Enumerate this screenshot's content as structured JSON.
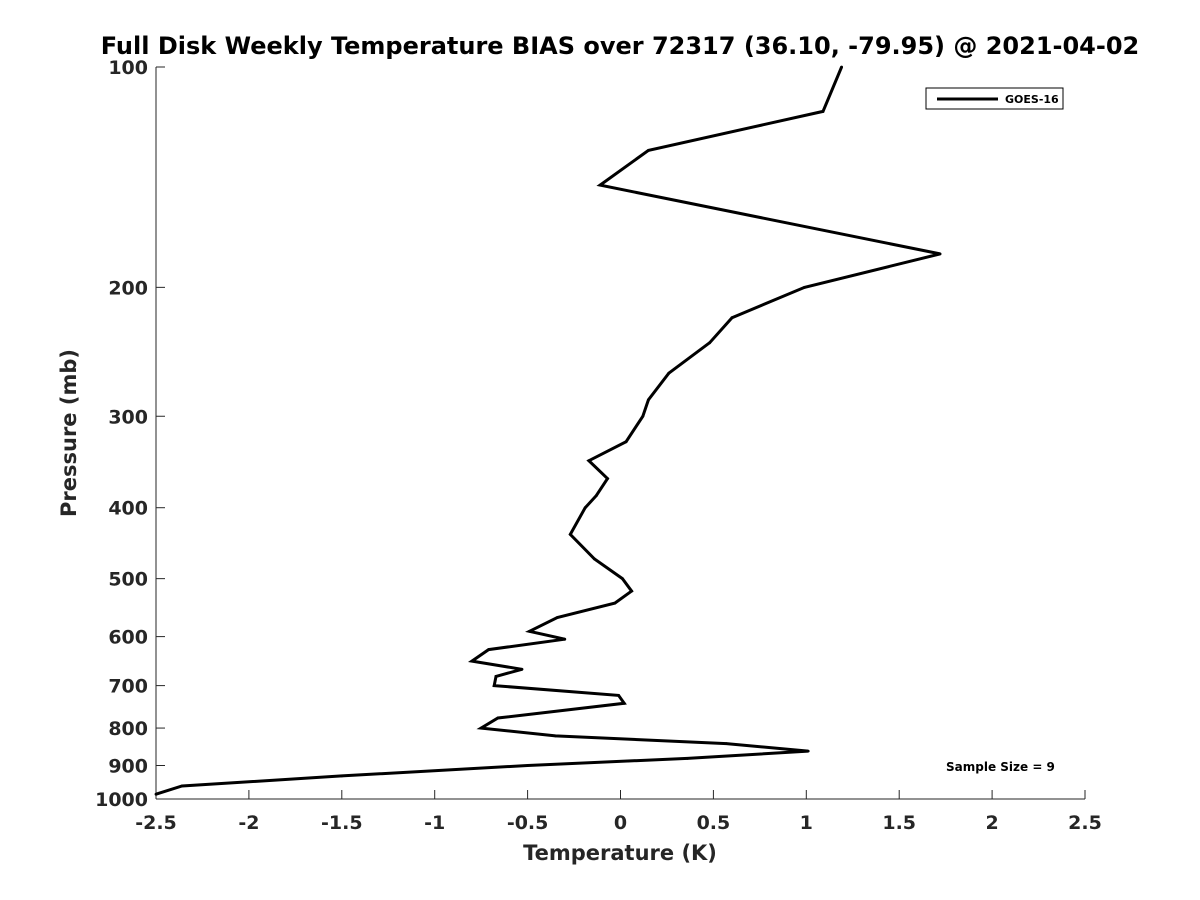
{
  "chart_data": {
    "type": "line",
    "title": "Full Disk Weekly Temperature BIAS over 72317 (36.10, -79.95) @ 2021-04-02",
    "xlabel": "Temperature (K)",
    "ylabel": "Pressure (mb)",
    "xlim": [
      -2.5,
      2.5
    ],
    "ylim": [
      100,
      1000
    ],
    "y_scale": "log",
    "y_reversed": true,
    "x_ticks": [
      "-2.5",
      "-2",
      "-1.5",
      "-1",
      "-0.5",
      "0",
      "0.5",
      "1",
      "1.5",
      "2",
      "2.5"
    ],
    "y_ticks": [
      "100",
      "200",
      "300",
      "400",
      "500",
      "600",
      "700",
      "800",
      "900",
      "1000"
    ],
    "grid": false,
    "legend_position": "top-right",
    "annotation": "Sample Size = 9",
    "series": [
      {
        "name": "GOES-16",
        "color": "#000000",
        "points": [
          {
            "x": 1.19,
            "y": 100
          },
          {
            "x": 1.09,
            "y": 115
          },
          {
            "x": 0.15,
            "y": 130
          },
          {
            "x": -0.11,
            "y": 145
          },
          {
            "x": 1.72,
            "y": 180
          },
          {
            "x": 0.99,
            "y": 200
          },
          {
            "x": 0.6,
            "y": 220
          },
          {
            "x": 0.48,
            "y": 238
          },
          {
            "x": 0.26,
            "y": 262
          },
          {
            "x": 0.15,
            "y": 285
          },
          {
            "x": 0.12,
            "y": 300
          },
          {
            "x": 0.03,
            "y": 325
          },
          {
            "x": -0.17,
            "y": 345
          },
          {
            "x": -0.07,
            "y": 365
          },
          {
            "x": -0.13,
            "y": 385
          },
          {
            "x": -0.19,
            "y": 400
          },
          {
            "x": -0.27,
            "y": 435
          },
          {
            "x": -0.14,
            "y": 470
          },
          {
            "x": 0.01,
            "y": 500
          },
          {
            "x": 0.06,
            "y": 520
          },
          {
            "x": -0.03,
            "y": 540
          },
          {
            "x": -0.34,
            "y": 565
          },
          {
            "x": -0.49,
            "y": 590
          },
          {
            "x": -0.3,
            "y": 605
          },
          {
            "x": -0.71,
            "y": 625
          },
          {
            "x": -0.8,
            "y": 648
          },
          {
            "x": -0.53,
            "y": 665
          },
          {
            "x": -0.67,
            "y": 680
          },
          {
            "x": -0.68,
            "y": 700
          },
          {
            "x": -0.01,
            "y": 722
          },
          {
            "x": 0.02,
            "y": 740
          },
          {
            "x": -0.66,
            "y": 775
          },
          {
            "x": -0.75,
            "y": 800
          },
          {
            "x": -0.35,
            "y": 820
          },
          {
            "x": 0.57,
            "y": 840
          },
          {
            "x": 1.01,
            "y": 860
          },
          {
            "x": 0.36,
            "y": 880
          },
          {
            "x": -0.5,
            "y": 900
          },
          {
            "x": -1.5,
            "y": 930
          },
          {
            "x": -2.36,
            "y": 960
          },
          {
            "x": -2.5,
            "y": 985
          }
        ]
      }
    ]
  }
}
